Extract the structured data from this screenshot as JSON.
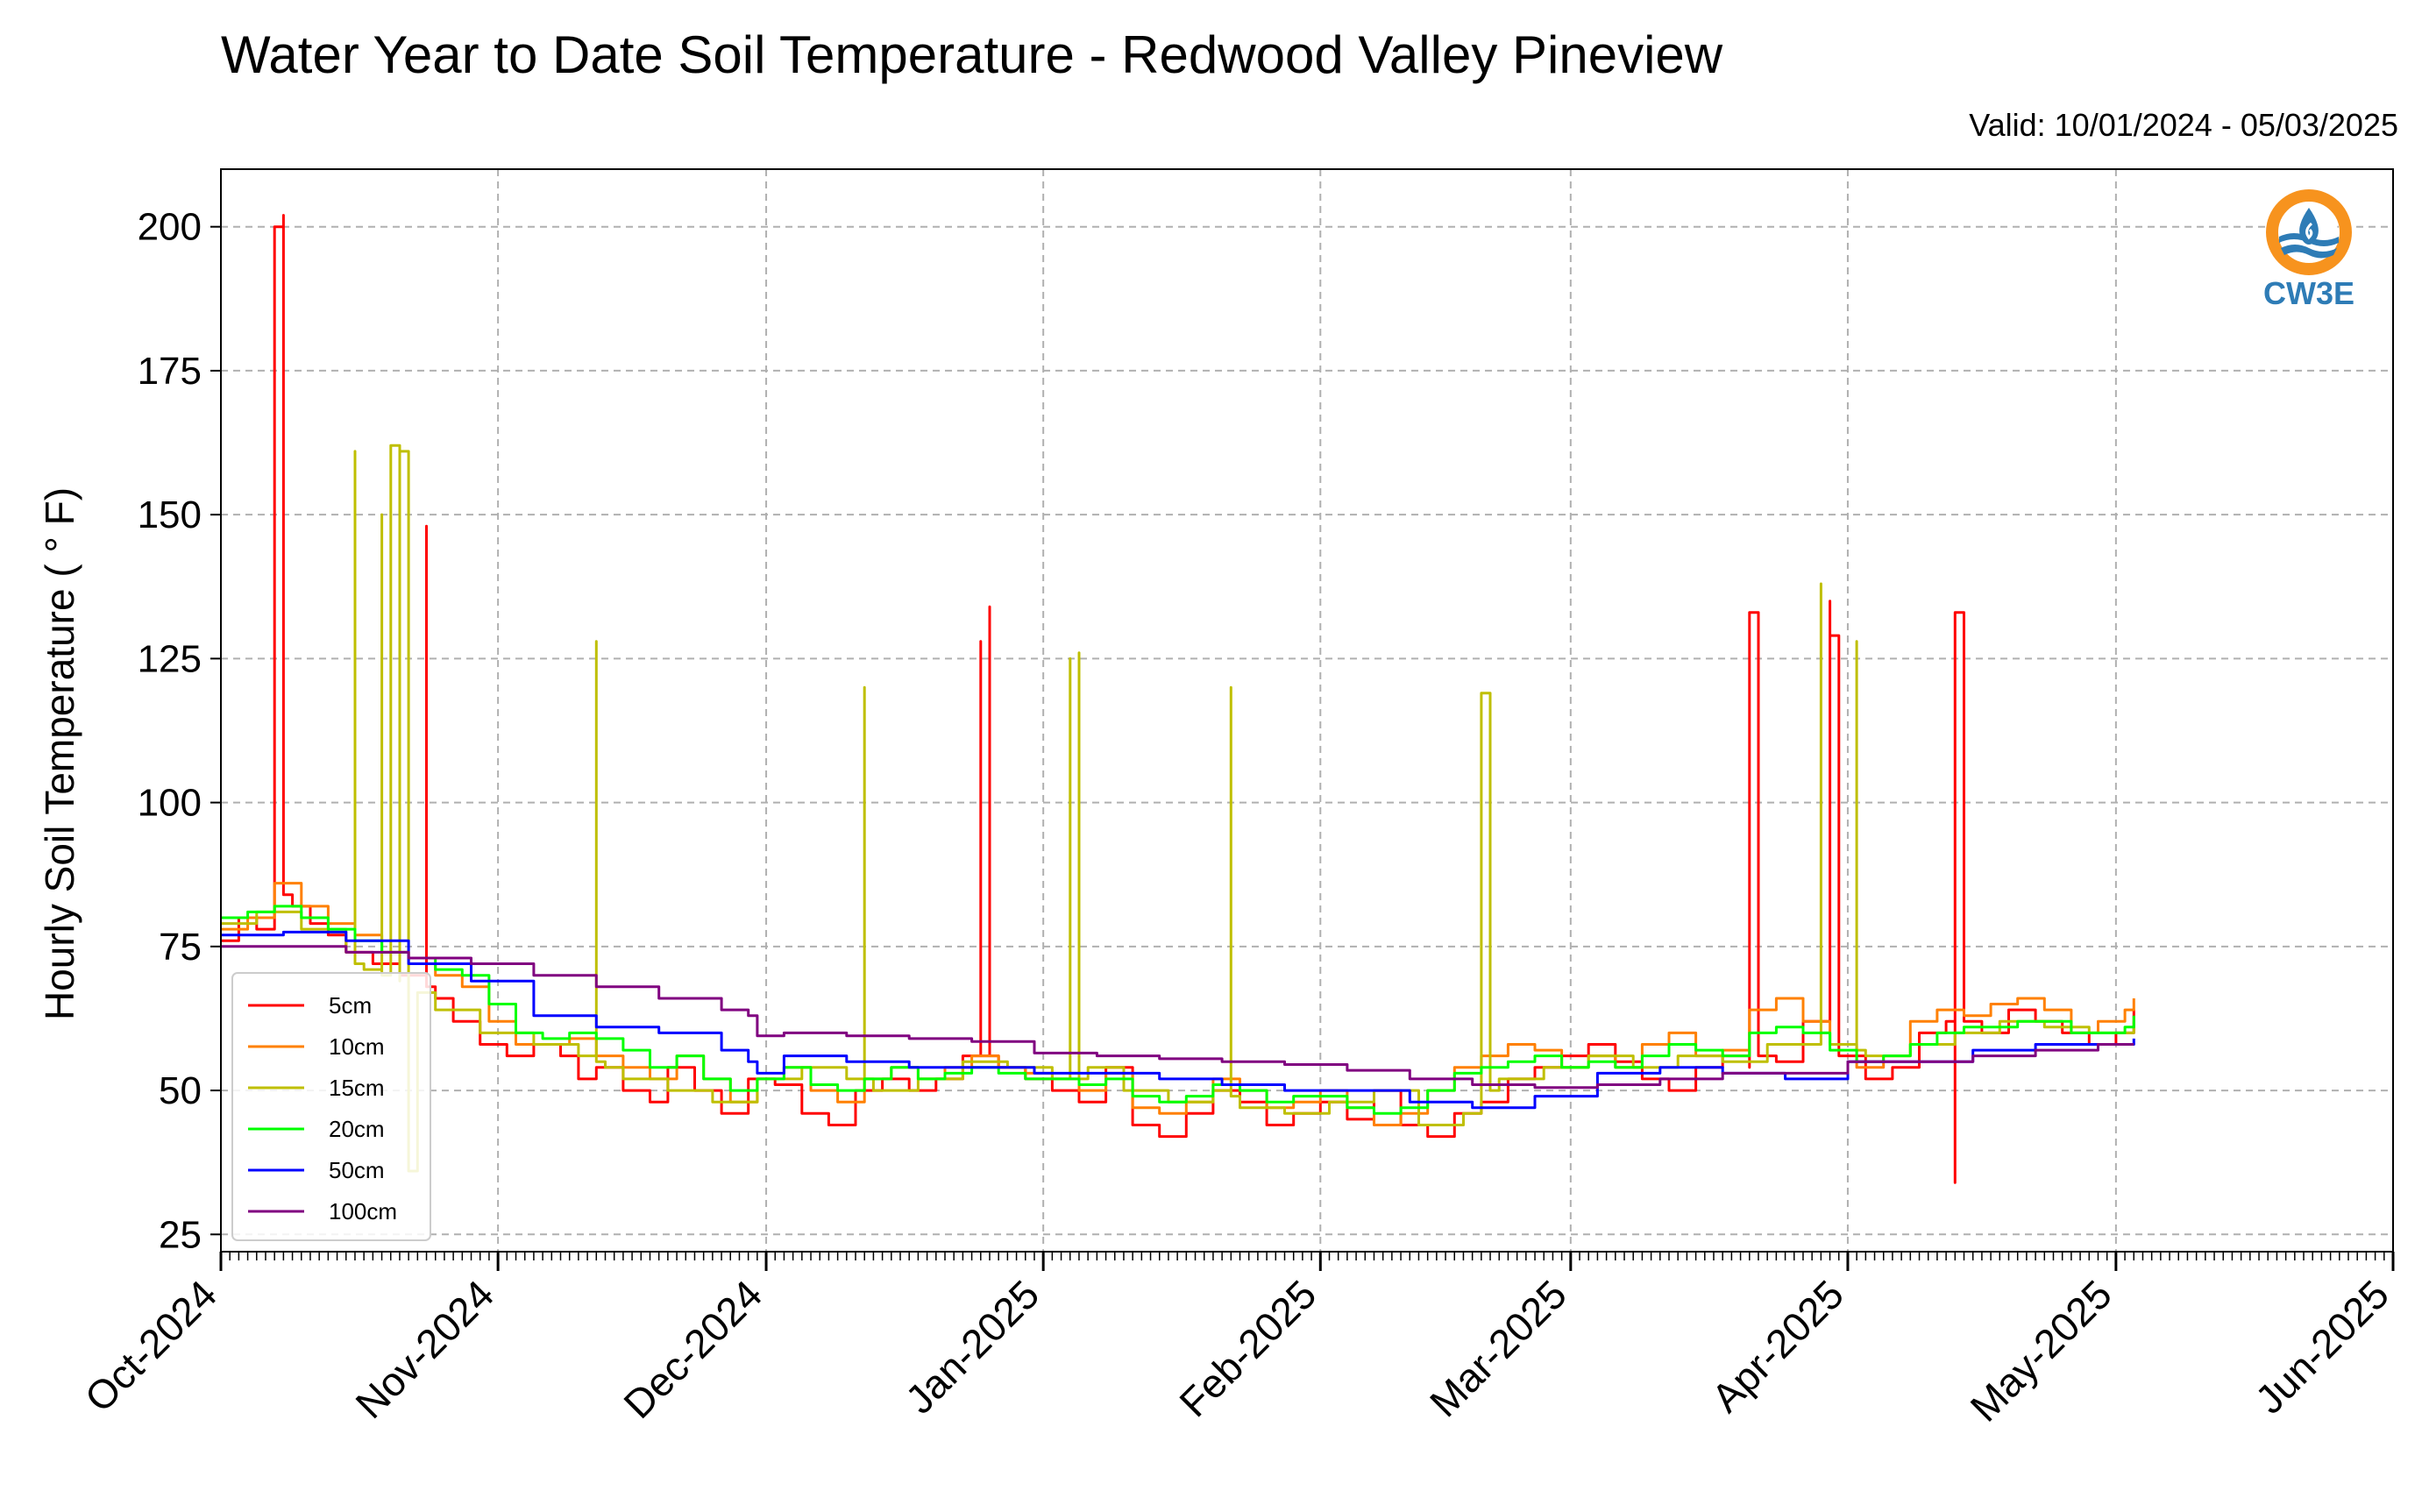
{
  "chart_data": {
    "type": "line",
    "title": "Water Year to Date Soil Temperature - Redwood Valley Pineview",
    "subtitle": "Valid: 10/01/2024 - 05/03/2025",
    "ylabel": "Hourly Soil Temperature ( ° F)",
    "xlabel": "",
    "xlim": [
      "2024-10-01",
      "2025-06-01"
    ],
    "ylim": [
      22,
      210
    ],
    "yticks": [
      25,
      50,
      75,
      100,
      125,
      150,
      175,
      200
    ],
    "xticks": [
      "2024-10-01",
      "2024-11-01",
      "2024-12-01",
      "2025-01-01",
      "2025-02-01",
      "2025-03-01",
      "2025-04-01",
      "2025-05-01",
      "2025-06-01"
    ],
    "xtick_labels": [
      "Oct-2024",
      "Nov-2024",
      "Dec-2024",
      "Jan-2025",
      "Feb-2025",
      "Mar-2025",
      "Apr-2025",
      "May-2025",
      "Jun-2025"
    ],
    "grid": true,
    "legend_position": "lower-left",
    "series": [
      {
        "name": "5cm",
        "color": "#ff0000",
        "x": [
          "2024-10-01",
          "2024-10-03",
          "2024-10-05",
          "2024-10-07",
          "2024-10-07",
          "2024-10-08",
          "2024-10-08",
          "2024-10-09",
          "2024-10-11",
          "2024-10-13",
          "2024-10-15",
          "2024-10-18",
          "2024-10-21",
          "2024-10-24",
          "2024-10-24",
          "2024-10-25",
          "2024-10-27",
          "2024-10-30",
          "2024-11-02",
          "2024-11-05",
          "2024-11-08",
          "2024-11-10",
          "2024-11-12",
          "2024-11-15",
          "2024-11-18",
          "2024-11-20",
          "2024-11-23",
          "2024-11-26",
          "2024-11-29",
          "2024-12-02",
          "2024-12-05",
          "2024-12-08",
          "2024-12-11",
          "2024-12-14",
          "2024-12-17",
          "2024-12-20",
          "2024-12-23",
          "2024-12-25",
          "2024-12-25",
          "2024-12-26",
          "2024-12-26",
          "2024-12-27",
          "2024-12-30",
          "2025-01-02",
          "2025-01-05",
          "2025-01-08",
          "2025-01-11",
          "2025-01-14",
          "2025-01-17",
          "2025-01-20",
          "2025-01-23",
          "2025-01-26",
          "2025-01-29",
          "2025-02-01",
          "2025-02-04",
          "2025-02-07",
          "2025-02-10",
          "2025-02-13",
          "2025-02-16",
          "2025-02-19",
          "2025-02-22",
          "2025-02-25",
          "2025-02-28",
          "2025-03-03",
          "2025-03-06",
          "2025-03-09",
          "2025-03-12",
          "2025-03-15",
          "2025-03-18",
          "2025-03-21",
          "2025-03-21",
          "2025-03-22",
          "2025-03-24",
          "2025-03-27",
          "2025-03-30",
          "2025-03-30",
          "2025-03-31",
          "2025-04-03",
          "2025-04-06",
          "2025-04-09",
          "2025-04-12",
          "2025-04-13",
          "2025-04-13",
          "2025-04-14",
          "2025-04-16",
          "2025-04-19",
          "2025-04-22",
          "2025-04-25",
          "2025-04-28",
          "2025-05-01",
          "2025-05-03"
        ],
        "values": [
          76,
          80,
          78,
          88,
          200,
          202,
          84,
          82,
          79,
          77,
          74,
          72,
          70,
          148,
          68,
          66,
          62,
          58,
          56,
          58,
          56,
          52,
          54,
          50,
          48,
          54,
          50,
          46,
          52,
          51,
          46,
          44,
          50,
          52,
          50,
          52,
          56,
          128,
          56,
          134,
          56,
          54,
          52,
          50,
          48,
          54,
          44,
          42,
          46,
          50,
          48,
          44,
          46,
          48,
          45,
          50,
          44,
          42,
          46,
          48,
          52,
          54,
          56,
          58,
          55,
          52,
          50,
          54,
          56,
          54,
          133,
          56,
          55,
          62,
          135,
          129,
          56,
          52,
          54,
          60,
          62,
          34,
          133,
          62,
          60,
          64,
          62,
          60,
          58,
          60,
          64
        ]
      },
      {
        "name": "10cm",
        "color": "#ff8000",
        "x": [
          "2024-10-01",
          "2024-10-04",
          "2024-10-07",
          "2024-10-10",
          "2024-10-13",
          "2024-10-16",
          "2024-10-19",
          "2024-10-22",
          "2024-10-25",
          "2024-10-28",
          "2024-10-31",
          "2024-11-03",
          "2024-11-06",
          "2024-11-09",
          "2024-11-12",
          "2024-11-15",
          "2024-11-18",
          "2024-11-21",
          "2024-11-24",
          "2024-11-27",
          "2024-11-30",
          "2024-12-03",
          "2024-12-06",
          "2024-12-09",
          "2024-12-12",
          "2024-12-15",
          "2024-12-18",
          "2024-12-21",
          "2024-12-24",
          "2024-12-27",
          "2024-12-30",
          "2025-01-02",
          "2025-01-05",
          "2025-01-08",
          "2025-01-11",
          "2025-01-14",
          "2025-01-17",
          "2025-01-20",
          "2025-01-23",
          "2025-01-26",
          "2025-01-29",
          "2025-02-01",
          "2025-02-04",
          "2025-02-07",
          "2025-02-10",
          "2025-02-13",
          "2025-02-16",
          "2025-02-19",
          "2025-02-22",
          "2025-02-25",
          "2025-02-28",
          "2025-03-03",
          "2025-03-06",
          "2025-03-09",
          "2025-03-12",
          "2025-03-15",
          "2025-03-18",
          "2025-03-21",
          "2025-03-24",
          "2025-03-27",
          "2025-03-30",
          "2025-04-02",
          "2025-04-05",
          "2025-04-08",
          "2025-04-11",
          "2025-04-14",
          "2025-04-17",
          "2025-04-20",
          "2025-04-23",
          "2025-04-26",
          "2025-04-29",
          "2025-05-02",
          "2025-05-03"
        ],
        "values": [
          78,
          80,
          86,
          82,
          79,
          77,
          74,
          72,
          70,
          68,
          62,
          58,
          58,
          59,
          56,
          54,
          52,
          56,
          52,
          48,
          52,
          54,
          50,
          48,
          52,
          54,
          52,
          54,
          56,
          54,
          53,
          52,
          50,
          53,
          47,
          46,
          48,
          52,
          50,
          47,
          48,
          50,
          47,
          44,
          46,
          50,
          54,
          56,
          58,
          57,
          54,
          56,
          54,
          58,
          60,
          56,
          57,
          64,
          66,
          62,
          58,
          54,
          56,
          62,
          64,
          63,
          65,
          66,
          64,
          60,
          62,
          64,
          66
        ]
      },
      {
        "name": "15cm",
        "color": "#bfbf00",
        "x": [
          "2024-10-01",
          "2024-10-05",
          "2024-10-10",
          "2024-10-15",
          "2024-10-16",
          "2024-10-16",
          "2024-10-17",
          "2024-10-19",
          "2024-10-19",
          "2024-10-20",
          "2024-10-21",
          "2024-10-21",
          "2024-10-22",
          "2024-10-22",
          "2024-10-23",
          "2024-10-25",
          "2024-10-30",
          "2024-11-05",
          "2024-11-10",
          "2024-11-12",
          "2024-11-12",
          "2024-11-13",
          "2024-11-15",
          "2024-11-20",
          "2024-11-25",
          "2024-11-30",
          "2024-12-05",
          "2024-12-10",
          "2024-12-12",
          "2024-12-12",
          "2024-12-13",
          "2024-12-18",
          "2024-12-23",
          "2024-12-28",
          "2025-01-02",
          "2025-01-04",
          "2025-01-04",
          "2025-01-05",
          "2025-01-05",
          "2025-01-06",
          "2025-01-10",
          "2025-01-15",
          "2025-01-20",
          "2025-01-22",
          "2025-01-22",
          "2025-01-23",
          "2025-01-28",
          "2025-02-02",
          "2025-02-07",
          "2025-02-12",
          "2025-02-17",
          "2025-02-19",
          "2025-02-19",
          "2025-02-20",
          "2025-02-20",
          "2025-02-21",
          "2025-02-26",
          "2025-03-03",
          "2025-03-08",
          "2025-03-13",
          "2025-03-18",
          "2025-03-23",
          "2025-03-29",
          "2025-03-29",
          "2025-03-30",
          "2025-04-02",
          "2025-04-02",
          "2025-04-03",
          "2025-04-08",
          "2025-04-13",
          "2025-04-18",
          "2025-04-23",
          "2025-04-28",
          "2025-05-03"
        ],
        "values": [
          79,
          81,
          78,
          74,
          161,
          72,
          71,
          150,
          70,
          162,
          69,
          161,
          68,
          36,
          67,
          64,
          60,
          58,
          56,
          128,
          55,
          54,
          52,
          50,
          48,
          52,
          54,
          52,
          120,
          52,
          50,
          52,
          55,
          54,
          52,
          125,
          53,
          126,
          52,
          54,
          50,
          48,
          50,
          120,
          49,
          47,
          46,
          48,
          50,
          44,
          46,
          119,
          119,
          119,
          50,
          52,
          54,
          56,
          54,
          56,
          55,
          58,
          138,
          60,
          58,
          128,
          57,
          56,
          58,
          60,
          62,
          61,
          60,
          62
        ]
      },
      {
        "name": "20cm",
        "color": "#00ff00",
        "x": [
          "2024-10-01",
          "2024-10-04",
          "2024-10-07",
          "2024-10-10",
          "2024-10-13",
          "2024-10-16",
          "2024-10-19",
          "2024-10-22",
          "2024-10-25",
          "2024-10-28",
          "2024-10-31",
          "2024-11-03",
          "2024-11-06",
          "2024-11-09",
          "2024-11-12",
          "2024-11-15",
          "2024-11-18",
          "2024-11-21",
          "2024-11-24",
          "2024-11-27",
          "2024-11-30",
          "2024-12-03",
          "2024-12-06",
          "2024-12-09",
          "2024-12-12",
          "2024-12-15",
          "2024-12-18",
          "2024-12-21",
          "2024-12-24",
          "2024-12-27",
          "2024-12-30",
          "2025-01-02",
          "2025-01-05",
          "2025-01-08",
          "2025-01-11",
          "2025-01-14",
          "2025-01-17",
          "2025-01-20",
          "2025-01-23",
          "2025-01-26",
          "2025-01-29",
          "2025-02-01",
          "2025-02-04",
          "2025-02-07",
          "2025-02-10",
          "2025-02-13",
          "2025-02-16",
          "2025-02-19",
          "2025-02-22",
          "2025-02-25",
          "2025-02-28",
          "2025-03-03",
          "2025-03-06",
          "2025-03-09",
          "2025-03-12",
          "2025-03-15",
          "2025-03-18",
          "2025-03-21",
          "2025-03-24",
          "2025-03-27",
          "2025-03-30",
          "2025-04-02",
          "2025-04-05",
          "2025-04-08",
          "2025-04-11",
          "2025-04-14",
          "2025-04-17",
          "2025-04-20",
          "2025-04-23",
          "2025-04-26",
          "2025-04-29",
          "2025-05-02",
          "2025-05-03"
        ],
        "values": [
          80,
          81,
          82,
          80,
          78,
          76,
          74,
          73,
          71,
          70,
          65,
          60,
          59,
          60,
          59,
          57,
          54,
          56,
          52,
          50,
          52,
          54,
          51,
          50,
          52,
          54,
          52,
          53,
          54,
          53,
          52,
          52,
          51,
          52,
          49,
          48,
          49,
          51,
          50,
          48,
          49,
          49,
          47,
          46,
          47,
          50,
          53,
          54,
          55,
          56,
          54,
          55,
          54,
          56,
          58,
          57,
          56,
          60,
          61,
          60,
          57,
          55,
          56,
          58,
          60,
          61,
          61,
          62,
          62,
          60,
          60,
          61,
          63
        ]
      },
      {
        "name": "50cm",
        "color": "#0000ff",
        "x": [
          "2024-10-01",
          "2024-10-08",
          "2024-10-15",
          "2024-10-22",
          "2024-10-29",
          "2024-11-05",
          "2024-11-12",
          "2024-11-19",
          "2024-11-26",
          "2024-11-29",
          "2024-11-30",
          "2024-12-03",
          "2024-12-10",
          "2024-12-17",
          "2024-12-24",
          "2024-12-31",
          "2025-01-07",
          "2025-01-14",
          "2025-01-21",
          "2025-01-28",
          "2025-02-04",
          "2025-02-11",
          "2025-02-18",
          "2025-02-25",
          "2025-03-04",
          "2025-03-11",
          "2025-03-18",
          "2025-03-25",
          "2025-04-01",
          "2025-04-08",
          "2025-04-15",
          "2025-04-22",
          "2025-04-29",
          "2025-05-03"
        ],
        "values": [
          77,
          77.5,
          76,
          72,
          69,
          63,
          61,
          60,
          57,
          55,
          53,
          56,
          55,
          54,
          54,
          53,
          53,
          52,
          51,
          50,
          50,
          48,
          47,
          49,
          53,
          54,
          53,
          52,
          55,
          55,
          57,
          58,
          58,
          59
        ]
      },
      {
        "name": "100cm",
        "color": "#800080",
        "x": [
          "2024-10-01",
          "2024-10-08",
          "2024-10-15",
          "2024-10-22",
          "2024-10-29",
          "2024-11-05",
          "2024-11-12",
          "2024-11-19",
          "2024-11-26",
          "2024-11-29",
          "2024-11-30",
          "2024-12-03",
          "2024-12-10",
          "2024-12-17",
          "2024-12-24",
          "2024-12-31",
          "2025-01-07",
          "2025-01-14",
          "2025-01-21",
          "2025-01-28",
          "2025-02-04",
          "2025-02-11",
          "2025-02-18",
          "2025-02-25",
          "2025-03-04",
          "2025-03-11",
          "2025-03-18",
          "2025-03-25",
          "2025-04-01",
          "2025-04-08",
          "2025-04-15",
          "2025-04-22",
          "2025-04-29",
          "2025-05-03"
        ],
        "values": [
          75,
          75,
          74,
          73,
          72,
          70,
          68,
          66,
          64,
          63,
          59.5,
          60,
          59.5,
          59,
          58.5,
          56.5,
          56,
          55.5,
          55,
          54.5,
          53.5,
          52,
          51,
          50.5,
          51,
          52,
          53,
          53,
          55,
          55,
          56,
          57,
          58,
          58
        ]
      }
    ]
  },
  "logo": {
    "text": "CW3E",
    "colors": {
      "orange": "#f7931e",
      "blue": "#2e7cb6"
    }
  }
}
